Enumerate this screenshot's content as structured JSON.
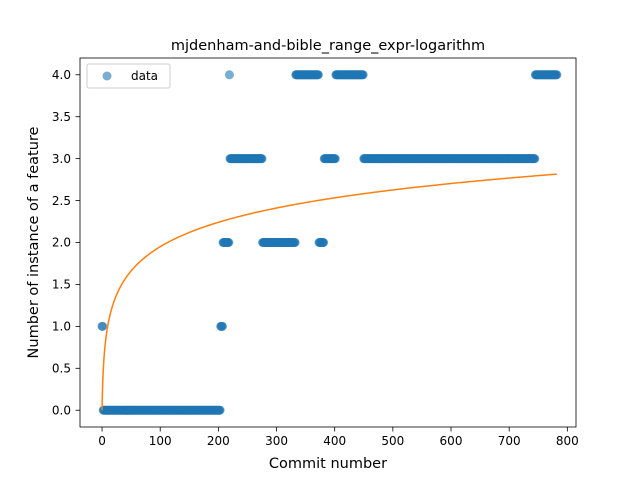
{
  "chart_data": {
    "type": "scatter",
    "title": "mjdenham-and-bible_range_expr-logarithm",
    "xlabel": "Commit number",
    "ylabel": "Number of instance of a feature",
    "xlim": [
      -37.9,
      814.9
    ],
    "ylim": [
      -0.2,
      4.2
    ],
    "xticks": [
      0,
      100,
      200,
      300,
      400,
      500,
      600,
      700,
      800
    ],
    "yticks": [
      0.0,
      0.5,
      1.0,
      1.5,
      2.0,
      2.5,
      3.0,
      3.5,
      4.0
    ],
    "xtick_labels": [
      "0",
      "100",
      "200",
      "300",
      "400",
      "500",
      "600",
      "700",
      "800"
    ],
    "ytick_labels": [
      "0.0",
      "0.5",
      "1.0",
      "1.5",
      "2.0",
      "2.5",
      "3.0",
      "3.5",
      "4.0"
    ],
    "grid": false,
    "legend": {
      "entries": [
        "data"
      ],
      "placement": "upper-left"
    },
    "series": [
      {
        "name": "data",
        "kind": "points",
        "color": "#1f77b4",
        "alpha": 0.6,
        "runs": [
          {
            "y": 1,
            "x_from": 0,
            "x_to": 1
          },
          {
            "y": 0,
            "x_from": 2,
            "x_to": 203
          },
          {
            "y": 1,
            "x_from": 204,
            "x_to": 207
          },
          {
            "y": 2,
            "x_from": 208,
            "x_to": 218
          },
          {
            "y": 4,
            "x_from": 219,
            "x_to": 219
          },
          {
            "y": 3,
            "x_from": 220,
            "x_to": 275
          },
          {
            "y": 2,
            "x_from": 276,
            "x_to": 332
          },
          {
            "y": 4,
            "x_from": 333,
            "x_to": 372
          },
          {
            "y": 2,
            "x_from": 373,
            "x_to": 381
          },
          {
            "y": 3,
            "x_from": 382,
            "x_to": 401
          },
          {
            "y": 4,
            "x_from": 402,
            "x_to": 449
          },
          {
            "y": 3,
            "x_from": 450,
            "x_to": 744
          },
          {
            "y": 4,
            "x_from": 745,
            "x_to": 782
          }
        ]
      },
      {
        "name": "",
        "kind": "fit-line",
        "color": "#ff7f0e",
        "model": {
          "form": "a + b*ln(x+1)",
          "a": -0.0,
          "b": 0.4225
        },
        "x_range": [
          0,
          782
        ]
      }
    ]
  }
}
